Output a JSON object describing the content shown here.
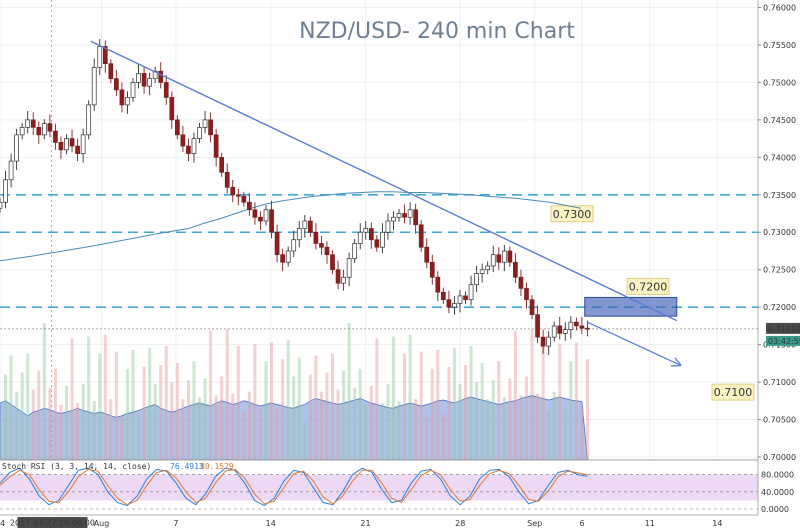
{
  "chart_data": {
    "type": "candlestick",
    "title": "NZD/USD- 240 min Chart",
    "ylim": [
      0.6996,
      0.761
    ],
    "y_ticks": [
      "0.76000",
      "0.75500",
      "0.75000",
      "0.74500",
      "0.74000",
      "0.73500",
      "0.73000",
      "0.72500",
      "0.72000",
      "0.71500",
      "0.71000",
      "0.70500",
      "0.70000"
    ],
    "y_tick_values": [
      0.76,
      0.755,
      0.75,
      0.745,
      0.74,
      0.735,
      0.73,
      0.725,
      0.72,
      0.715,
      0.71,
      0.705,
      0.7
    ],
    "x_ticks": [
      "24",
      "Aug",
      "7",
      "14",
      "21",
      "28",
      "Sep",
      "6",
      "11",
      "14"
    ],
    "x_tick_days": [
      0,
      7.5,
      13,
      20,
      27,
      34,
      39.5,
      43,
      48,
      53
    ],
    "crosshair_date_label": "2017-07-27 19:00:00",
    "crosshair_day": 3.8,
    "last_price": {
      "value": 0.7171,
      "label": "0.71710",
      "countdown": "03:42:59"
    },
    "horizontal_levels": [
      {
        "value": 0.735,
        "label": ""
      },
      {
        "value": 0.73,
        "label": "0.7300"
      },
      {
        "value": 0.72,
        "label": "0.7200"
      }
    ],
    "target_label": {
      "label": "0.7100",
      "value": 0.71
    },
    "zone": {
      "day_start": 43.2,
      "day_end": 50,
      "price_low": 0.7188,
      "price_high": 0.7213
    },
    "trendline": {
      "day_start": 6.7,
      "price_start": 0.7555,
      "day_end": 50,
      "price_end": 0.7182
    },
    "close_series": [
      0.734,
      0.737,
      0.7395,
      0.743,
      0.744,
      0.745,
      0.744,
      0.743,
      0.7445,
      0.7435,
      0.742,
      0.741,
      0.7425,
      0.7415,
      0.7405,
      0.743,
      0.747,
      0.752,
      0.7548,
      0.7525,
      0.7505,
      0.749,
      0.747,
      0.748,
      0.75,
      0.7512,
      0.7495,
      0.7505,
      0.7515,
      0.75,
      0.748,
      0.745,
      0.743,
      0.7415,
      0.7405,
      0.7425,
      0.744,
      0.745,
      0.743,
      0.74,
      0.738,
      0.736,
      0.735,
      0.7348,
      0.734,
      0.733,
      0.732,
      0.7315,
      0.733,
      0.73,
      0.727,
      0.726,
      0.7275,
      0.729,
      0.7305,
      0.7315,
      0.73,
      0.7285,
      0.728,
      0.727,
      0.725,
      0.7232,
      0.724,
      0.7265,
      0.7285,
      0.73,
      0.7305,
      0.729,
      0.728,
      0.73,
      0.7315,
      0.732,
      0.7325,
      0.732,
      0.733,
      0.731,
      0.728,
      0.726,
      0.724,
      0.722,
      0.721,
      0.72,
      0.7205,
      0.7215,
      0.721,
      0.723,
      0.7245,
      0.725,
      0.7255,
      0.727,
      0.726,
      0.7275,
      0.726,
      0.724,
      0.7225,
      0.721,
      0.719,
      0.716,
      0.7148,
      0.716,
      0.7175,
      0.7165,
      0.717,
      0.718,
      0.7175,
      0.7172,
      0.7171
    ],
    "volume_area": [
      0.7072,
      0.7075,
      0.707,
      0.7065,
      0.706,
      0.7055,
      0.706,
      0.7062,
      0.7065,
      0.7063,
      0.706,
      0.7058,
      0.706,
      0.7062,
      0.7065,
      0.7062,
      0.706,
      0.7058,
      0.706,
      0.7058,
      0.7055,
      0.7053,
      0.7055,
      0.7058,
      0.706,
      0.7062,
      0.7065,
      0.7068,
      0.707,
      0.7065,
      0.7062,
      0.706,
      0.7062,
      0.7065,
      0.7068,
      0.707,
      0.7072,
      0.707,
      0.7068,
      0.7072,
      0.7075,
      0.7073,
      0.707,
      0.7072,
      0.7075,
      0.7073,
      0.707,
      0.7068,
      0.707,
      0.7072,
      0.707,
      0.7068,
      0.7066,
      0.7065,
      0.7068,
      0.707,
      0.7075,
      0.7078,
      0.7076,
      0.7074,
      0.7072,
      0.707,
      0.7072,
      0.7074,
      0.7076,
      0.7078,
      0.7075,
      0.7072,
      0.707,
      0.7068,
      0.7066,
      0.7065,
      0.7068,
      0.707,
      0.7072,
      0.707,
      0.7068,
      0.707,
      0.7072,
      0.7075,
      0.7076,
      0.7074,
      0.7072,
      0.7075,
      0.7078,
      0.708,
      0.7078,
      0.7076,
      0.7074,
      0.7072,
      0.707,
      0.7072,
      0.7074,
      0.7075,
      0.7078,
      0.708,
      0.7082,
      0.708,
      0.7078,
      0.7076,
      0.7078,
      0.708,
      0.7078,
      0.7076,
      0.7075,
      0.7074
    ],
    "moving_average": [
      0.7262,
      0.7268,
      0.7275,
      0.7282,
      0.729,
      0.7298,
      0.7305,
      0.7312,
      0.7318,
      0.7325,
      0.7332,
      0.7338,
      0.7342,
      0.7345,
      0.7348,
      0.735,
      0.7352,
      0.7353,
      0.7354,
      0.7354,
      0.7353,
      0.7353,
      0.7352,
      0.7351,
      0.735,
      0.7348,
      0.7345,
      0.734,
      0.7332
    ],
    "ma_days": [
      0,
      2,
      4,
      6,
      8,
      10,
      12,
      13,
      14,
      15,
      16,
      17,
      18,
      19,
      20,
      21,
      22,
      23,
      24,
      25,
      26,
      27,
      28,
      29,
      30,
      31,
      33,
      35,
      37
    ],
    "stochastic": {
      "label": "Stoch RSI (3, 3, 14, 14, close)",
      "k_value": "76.4913",
      "d_value": "80.1529",
      "ticks": [
        "80.0000",
        "40.0000",
        "0.0000"
      ],
      "tick_values": [
        80,
        40,
        0
      ],
      "k": [
        60,
        85,
        95,
        70,
        30,
        10,
        20,
        55,
        90,
        95,
        80,
        40,
        15,
        8,
        30,
        70,
        92,
        88,
        60,
        25,
        10,
        35,
        75,
        95,
        90,
        60,
        20,
        8,
        25,
        65,
        90,
        85,
        50,
        15,
        10,
        40,
        80,
        95,
        85,
        45,
        15,
        20,
        60,
        88,
        92,
        70,
        30,
        10,
        30,
        70,
        90,
        92,
        75,
        40,
        12,
        20,
        55,
        85,
        90,
        80,
        76
      ],
      "d": [
        55,
        75,
        90,
        80,
        45,
        18,
        15,
        40,
        75,
        92,
        88,
        55,
        25,
        10,
        20,
        55,
        85,
        90,
        72,
        40,
        15,
        25,
        60,
        88,
        92,
        72,
        35,
        12,
        18,
        50,
        82,
        88,
        65,
        28,
        12,
        30,
        65,
        90,
        90,
        60,
        25,
        15,
        45,
        78,
        90,
        80,
        45,
        18,
        22,
        55,
        82,
        90,
        82,
        55,
        22,
        18,
        42,
        75,
        88,
        84,
        80
      ]
    }
  }
}
